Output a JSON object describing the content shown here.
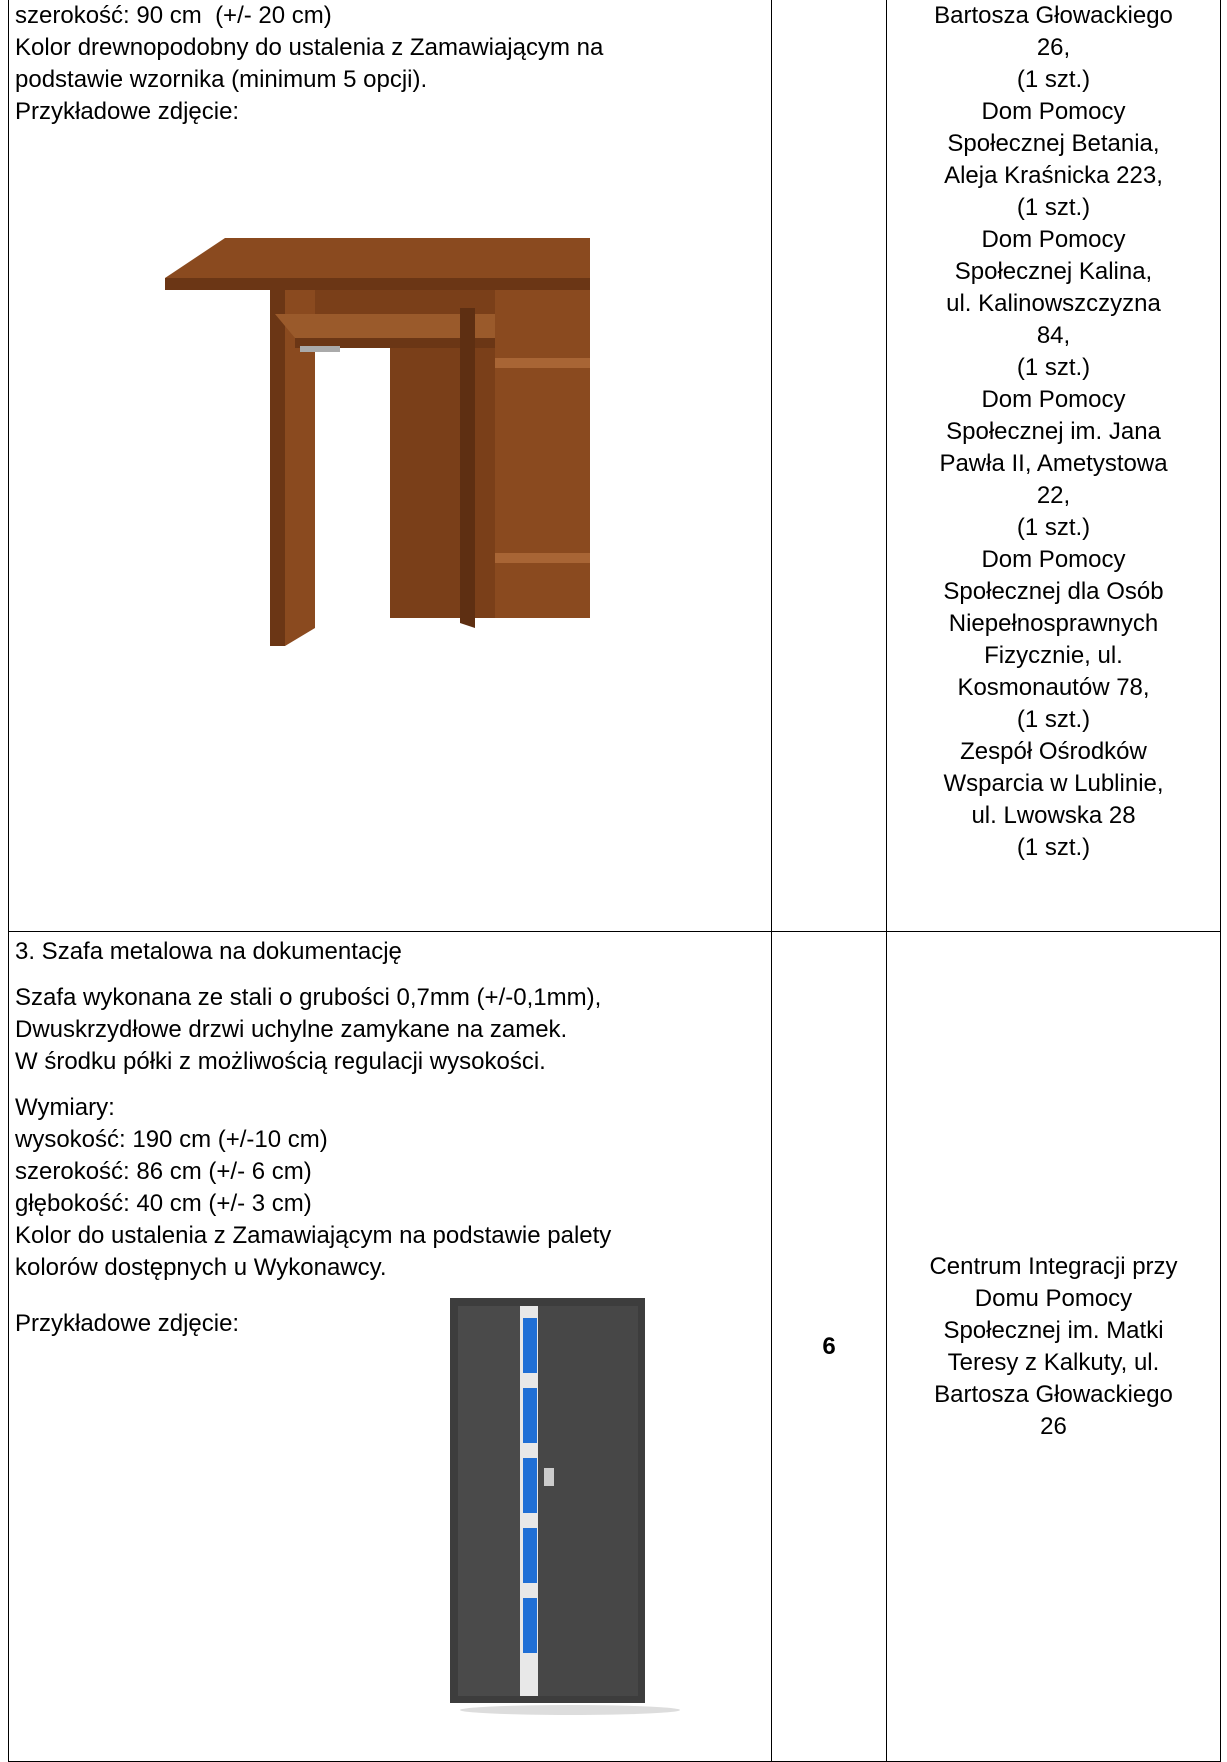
{
  "table": {
    "rows": [
      {
        "description": {
          "lines": [
            "szerokość: 90 cm  (+/- 20 cm)",
            "Kolor drewnopodobny do ustalenia z Zamawiającym na",
            "podstawie wzornika (minimum 5 opcji).",
            "Przykładowe zdjęcie:"
          ]
        },
        "location": [
          "Bartosza Głowackiego",
          "26,",
          "(1 szt.)",
          "Dom Pomocy",
          "Społecznej Betania,",
          "Aleja Kraśnicka 223,",
          "(1 szt.)",
          "Dom Pomocy",
          "Społecznej Kalina,",
          "ul. Kalinowszczyzna",
          "84,",
          "(1 szt.)",
          "Dom Pomocy",
          "Społecznej im. Jana",
          "Pawła II, Ametystowa",
          "22,",
          "(1 szt.)",
          "Dom Pomocy",
          "Społecznej dla Osób",
          "Niepełnosprawnych",
          "Fizycznie, ul.",
          "Kosmonautów 78,",
          "(1 szt.)",
          "Zespół Ośrodków",
          "Wsparcia w Lublinie,",
          "ul. Lwowska 28",
          "(1 szt.)"
        ]
      },
      {
        "description": {
          "paragraphs": [
            [
              "3. Szafa metalowa na dokumentację"
            ],
            [
              "Szafa wykonana ze stali o grubości 0,7mm (+/-0,1mm),",
              "Dwuskrzydłowe drzwi uchylne zamykane na zamek.",
              "W środku półki z możliwością regulacji wysokości."
            ],
            [
              "Wymiary:",
              "wysokość: 190 cm (+/-10 cm)",
              "szerokość: 86 cm (+/- 6 cm)",
              "głębokość: 40 cm (+/- 3 cm)",
              "Kolor do ustalenia z Zamawiającym na podstawie palety",
              "kolorów dostępnych u Wykonawcy."
            ]
          ],
          "photo_label": "Przykładowe zdjęcie:"
        },
        "quantity": "6",
        "location": [
          "Centrum Integracji przy",
          "Domu Pomocy",
          "Społecznej im. Matki",
          "Teresy z Kalkuty, ul.",
          "Bartosza Głowackiego",
          "26"
        ]
      }
    ]
  }
}
